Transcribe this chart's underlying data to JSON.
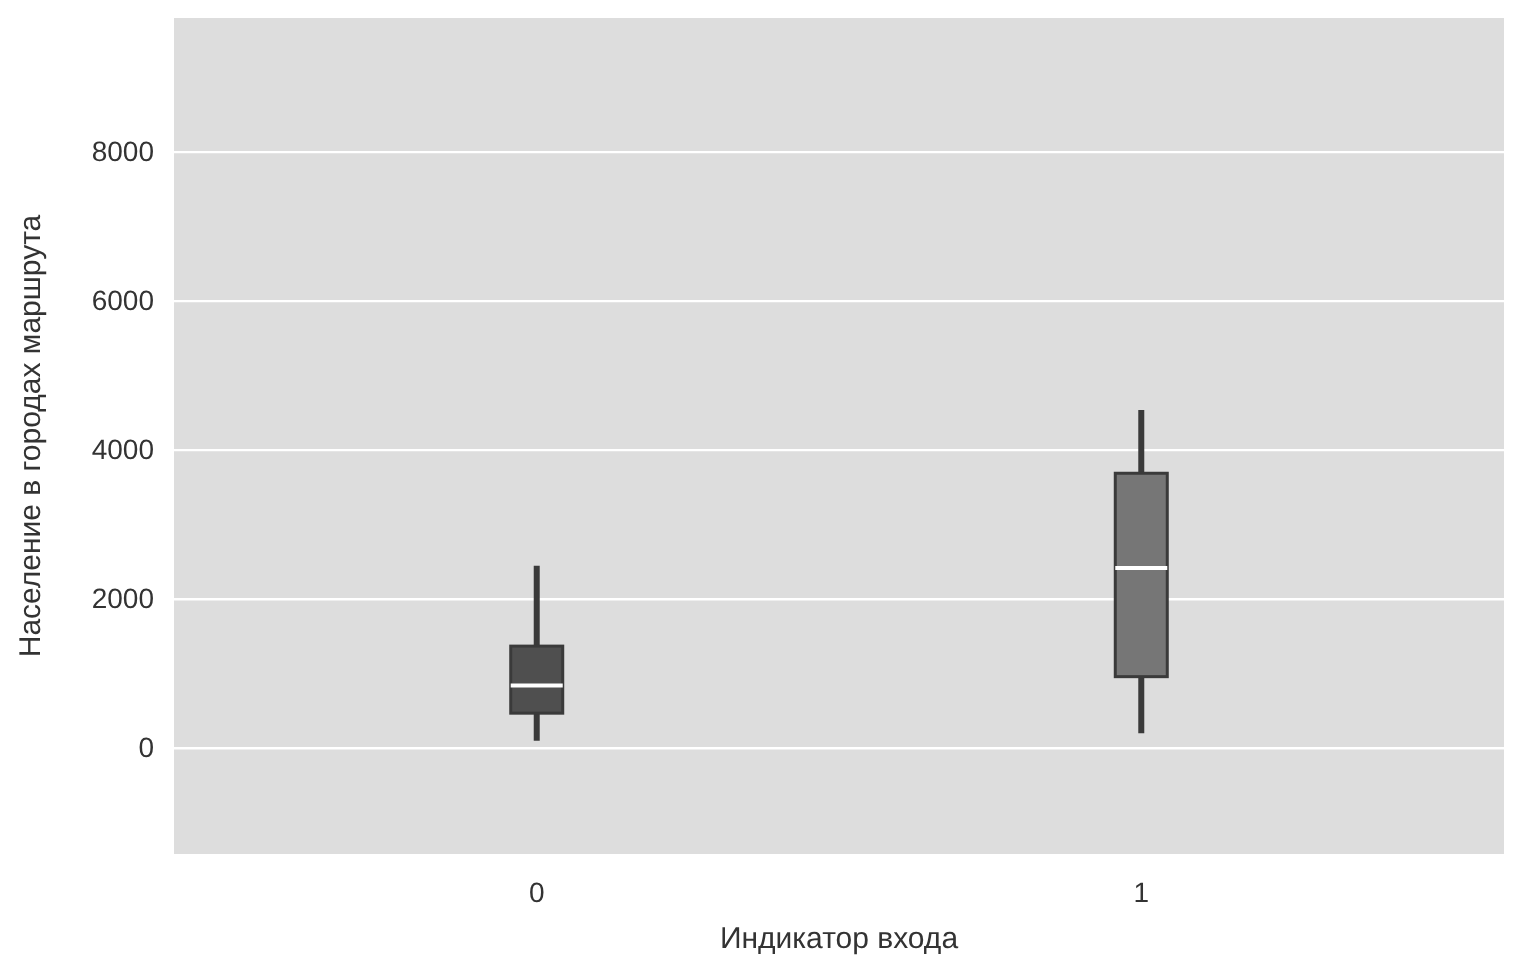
{
  "chart_data": {
    "type": "box",
    "xlabel": "Индикатор входа",
    "ylabel": "Население в городах маршрута",
    "categories": [
      "0",
      "1"
    ],
    "boxes": [
      {
        "low": 100,
        "q1": 470,
        "median": 840,
        "q3": 1370,
        "high": 2450
      },
      {
        "low": 200,
        "q1": 960,
        "median": 2420,
        "q3": 3690,
        "high": 4540
      }
    ],
    "colors": [
      "#4f4f4f",
      "#767676"
    ],
    "ylim": [
      -1420,
      9800
    ],
    "yticks": [
      0,
      2000,
      4000,
      6000,
      8000
    ],
    "grid": "y"
  }
}
